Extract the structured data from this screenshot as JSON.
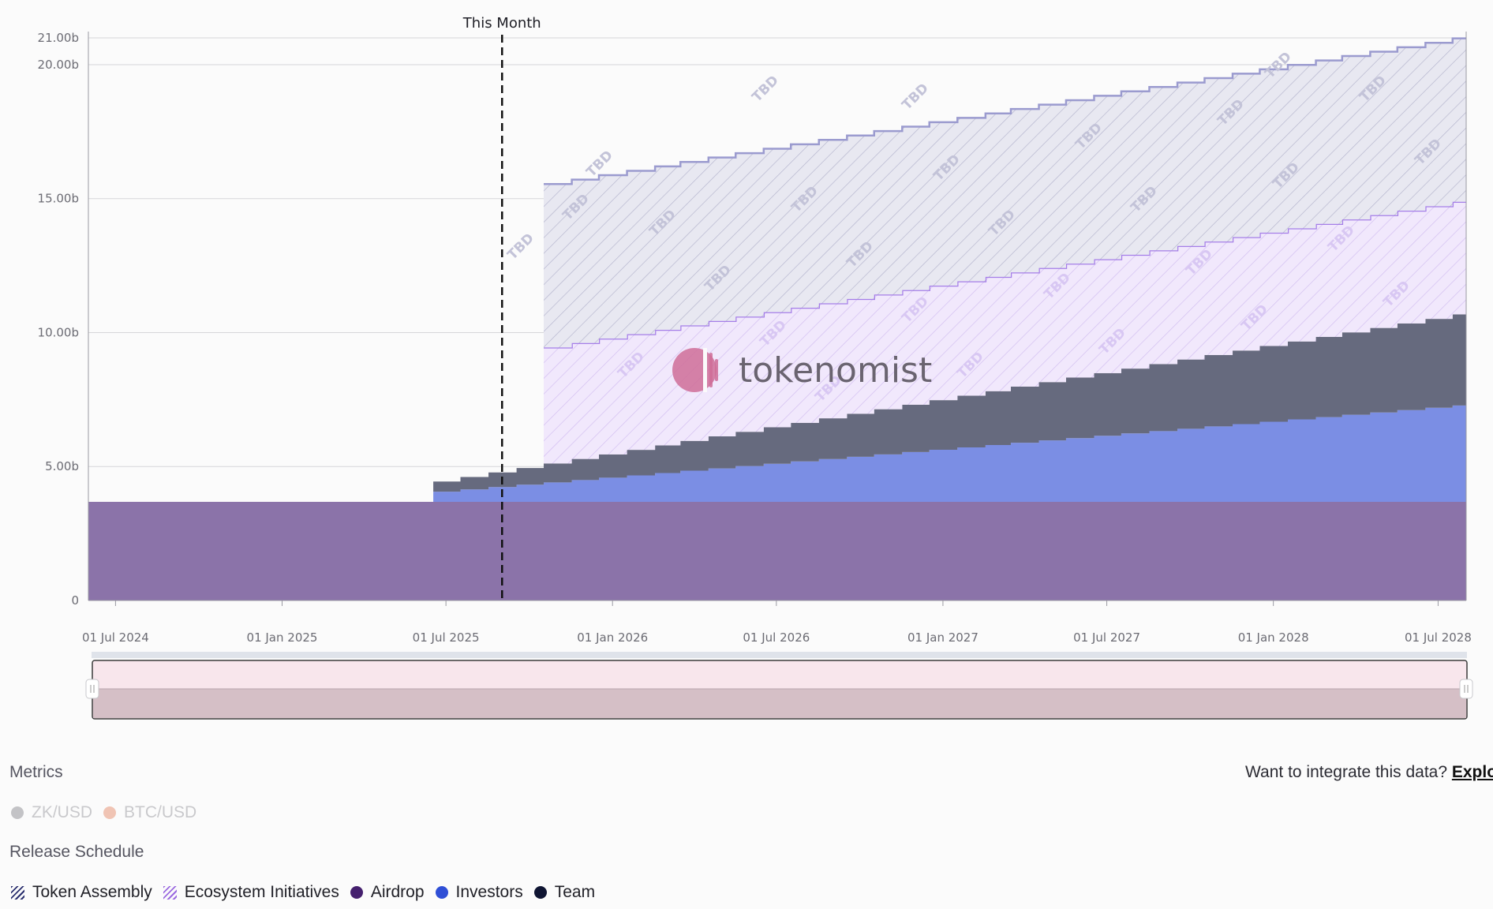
{
  "chart_data": {
    "type": "area",
    "marker": {
      "label": "This Month",
      "date": "2025-09-01"
    },
    "x_ticks": [
      {
        "date": "2024-07-01",
        "label": "01 Jul 2024"
      },
      {
        "date": "2025-01-01",
        "label": "01 Jan 2025"
      },
      {
        "date": "2025-07-01",
        "label": "01 Jul 2025"
      },
      {
        "date": "2026-01-01",
        "label": "01 Jan 2026"
      },
      {
        "date": "2026-07-01",
        "label": "01 Jul 2026"
      },
      {
        "date": "2027-01-01",
        "label": "01 Jan 2027"
      },
      {
        "date": "2027-07-01",
        "label": "01 Jul 2027"
      },
      {
        "date": "2028-01-01",
        "label": "01 Jan 2028"
      },
      {
        "date": "2028-07-01",
        "label": "01 Jul 2028"
      }
    ],
    "y_ticks": [
      {
        "value": 0,
        "label": "0"
      },
      {
        "value": 5,
        "label": "5.00b"
      },
      {
        "value": 10,
        "label": "10.00b"
      },
      {
        "value": 15,
        "label": "15.00b"
      },
      {
        "value": 20,
        "label": "20.00b"
      },
      {
        "value": 21,
        "label": "21.00b"
      }
    ],
    "xlim": [
      "2024-06-01",
      "2028-08-01"
    ],
    "ylim": [
      0,
      21
    ],
    "grid": true,
    "hatch_label": "TBD",
    "series": [
      {
        "name": "Airdrop",
        "color": "#8b73a9",
        "start": "2024-06-01",
        "end": "2028-08-01",
        "from": 3.68,
        "to": 3.68,
        "stepped": false
      },
      {
        "name": "Investors",
        "color": "#7b8ee4",
        "start": "2025-06-17",
        "end": "2028-08-01",
        "from": 0.38,
        "to": 3.6,
        "stepped": true
      },
      {
        "name": "Team",
        "color": "#666a7e",
        "start": "2025-06-17",
        "end": "2028-08-01",
        "from": 0.38,
        "to": 3.4,
        "stepped": true
      },
      {
        "name": "Ecosystem Initiatives",
        "color": "#a57ee8",
        "fill": "#efe7fb",
        "start": "2025-10-17",
        "end": "2028-08-01",
        "from": 4.33,
        "to": 4.2,
        "stepped": true,
        "hatched": true
      },
      {
        "name": "Token Assembly",
        "color": "#9b9bcf",
        "fill": "#e8e8f2",
        "start": "2025-10-17",
        "end": "2028-08-01",
        "from": 6.1,
        "to": 6.1,
        "stepped": true,
        "hatched": true
      }
    ]
  },
  "metrics": {
    "title": "Metrics",
    "items": [
      {
        "label": "ZK/USD",
        "color": "#c3c3c6"
      },
      {
        "label": "BTC/USD",
        "color": "#f0c4b4"
      }
    ]
  },
  "integrate": {
    "text": "Want to integrate this data? ",
    "link": "Explore"
  },
  "release_schedule": {
    "title": "Release Schedule",
    "items": [
      {
        "label": "Token Assembly",
        "type": "hatch",
        "color": "#2a2f6e"
      },
      {
        "label": "Ecosystem Initiatives",
        "type": "hatch",
        "color": "#9b6ae0"
      },
      {
        "label": "Airdrop",
        "type": "dot",
        "color": "#45206e"
      },
      {
        "label": "Investors",
        "type": "dot",
        "color": "#2f4fd6"
      },
      {
        "label": "Team",
        "type": "dot",
        "color": "#0f1532"
      }
    ]
  },
  "watermark": {
    "text": "tokenomist"
  },
  "navigator": {
    "fill": "#f8e6ec",
    "lower_fill": "#d5bfc6"
  }
}
